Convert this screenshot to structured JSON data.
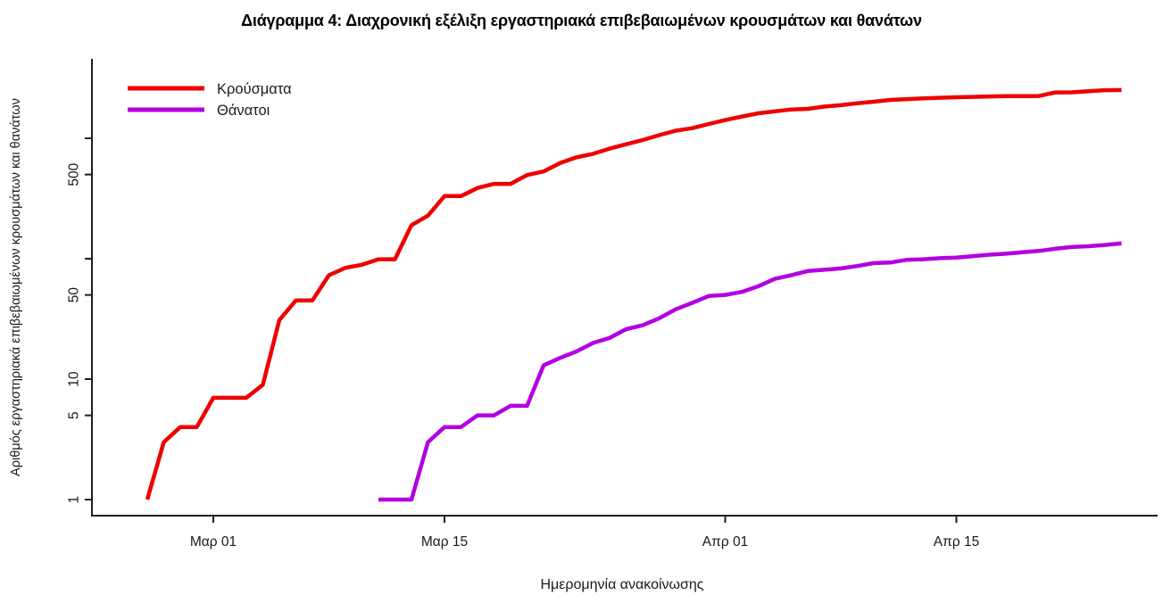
{
  "title": "Διάγραμμα 4: Διαχρονική εξέλιξη εργαστηριακά επιβεβαιωμένων κρουσμάτων και θανάτων",
  "axes": {
    "x_label": "Ημερομηνία ανακοίνωσης",
    "y_label": "Αριθμός εργαστηριακά επιβεβαιωμένων κρουσμάτων και θανάτων",
    "x_tick_labels": [
      "Μαρ 01",
      "Μαρ 15",
      "Απρ 01",
      "Απρ 15"
    ],
    "y_tick_labels": [
      "1",
      "5",
      "10",
      "50",
      "500"
    ]
  },
  "legend": {
    "position": "top-left",
    "items": [
      {
        "label": "Κρούσματα",
        "color": "#ee0000"
      },
      {
        "label": "Θάνατοι",
        "color": "#b400e0"
      }
    ]
  },
  "chart_data": {
    "type": "line",
    "title": "Διάγραμμα 4: Διαχρονική εξέλιξη εργαστηριακά επιβεβαιωμένων κρουσμάτων και θανάτων",
    "xlabel": "Ημερομηνία ανακοίνωσης",
    "ylabel": "Αριθμός εργαστηριακά επιβεβαιωμένων κρουσμάτων και θανάτων",
    "y_scale": "log10",
    "ylim": [
      1,
      4500
    ],
    "grid": false,
    "legend_position": "top-left",
    "dates": [
      "Φεβ 26",
      "Φεβ 27",
      "Φεβ 28",
      "Φεβ 29",
      "Μαρ 01",
      "Μαρ 02",
      "Μαρ 03",
      "Μαρ 04",
      "Μαρ 05",
      "Μαρ 06",
      "Μαρ 07",
      "Μαρ 08",
      "Μαρ 09",
      "Μαρ 10",
      "Μαρ 11",
      "Μαρ 12",
      "Μαρ 13",
      "Μαρ 14",
      "Μαρ 15",
      "Μαρ 16",
      "Μαρ 17",
      "Μαρ 18",
      "Μαρ 19",
      "Μαρ 20",
      "Μαρ 21",
      "Μαρ 22",
      "Μαρ 23",
      "Μαρ 24",
      "Μαρ 25",
      "Μαρ 26",
      "Μαρ 27",
      "Μαρ 28",
      "Μαρ 29",
      "Μαρ 30",
      "Μαρ 31",
      "Απρ 01",
      "Απρ 02",
      "Απρ 03",
      "Απρ 04",
      "Απρ 05",
      "Απρ 06",
      "Απρ 07",
      "Απρ 08",
      "Απρ 09",
      "Απρ 10",
      "Απρ 11",
      "Απρ 12",
      "Απρ 13",
      "Απρ 14",
      "Απρ 15",
      "Απρ 16",
      "Απρ 17",
      "Απρ 18",
      "Απρ 19",
      "Απρ 20",
      "Απρ 21",
      "Απρ 22",
      "Απρ 23",
      "Απρ 24",
      "Απρ 25"
    ],
    "x_ticks": [
      {
        "index": 4,
        "label": "Μαρ 01"
      },
      {
        "index": 18,
        "label": "Μαρ 15"
      },
      {
        "index": 35,
        "label": "Απρ 01"
      },
      {
        "index": 49,
        "label": "Απρ 15"
      }
    ],
    "y_ticks": [
      {
        "value": 1,
        "label": "1"
      },
      {
        "value": 5,
        "label": "5"
      },
      {
        "value": 10,
        "label": "10"
      },
      {
        "value": 50,
        "label": "50"
      },
      {
        "value": 100,
        "label": ""
      },
      {
        "value": 500,
        "label": "500"
      },
      {
        "value": 1000,
        "label": ""
      }
    ],
    "series": [
      {
        "name": "Κρούσματα",
        "color": "#ee0000",
        "start_index": 0,
        "values": [
          1,
          3,
          4,
          4,
          7,
          7,
          7,
          9,
          31,
          45,
          45,
          73,
          84,
          89,
          99,
          99,
          190,
          228,
          331,
          331,
          387,
          418,
          418,
          495,
          530,
          624,
          695,
          743,
          821,
          892,
          966,
          1061,
          1156,
          1212,
          1314,
          1415,
          1514,
          1613,
          1673,
          1735,
          1755,
          1832,
          1884,
          1955,
          2011,
          2081,
          2114,
          2145,
          2170,
          2192,
          2207,
          2224,
          2235,
          2235,
          2245,
          2401,
          2408,
          2463,
          2506,
          2517
        ]
      },
      {
        "name": "Θάνατοι",
        "color": "#b400e0",
        "start_index": 14,
        "values": [
          1,
          1,
          1,
          3,
          4,
          4,
          5,
          5,
          6,
          6,
          13,
          15,
          17,
          20,
          22,
          26,
          28,
          32,
          38,
          43,
          49,
          50,
          53,
          59,
          68,
          73,
          79,
          81,
          83,
          87,
          92,
          93,
          98,
          99,
          101,
          102,
          105,
          108,
          110,
          113,
          116,
          121,
          125,
          127,
          130,
          134
        ]
      }
    ]
  }
}
